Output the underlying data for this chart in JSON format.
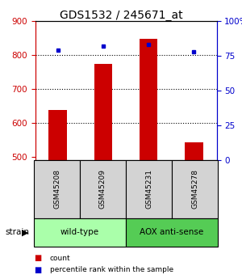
{
  "title": "GDS1532 / 245671_at",
  "samples": [
    "GSM45208",
    "GSM45209",
    "GSM45231",
    "GSM45278"
  ],
  "counts": [
    638,
    773,
    847,
    543
  ],
  "percentiles": [
    79,
    82,
    83,
    78
  ],
  "ylim_left": [
    490,
    900
  ],
  "ylim_right": [
    0,
    100
  ],
  "yticks_left": [
    500,
    600,
    700,
    800,
    900
  ],
  "yticks_right": [
    0,
    25,
    50,
    75,
    100
  ],
  "ytick_labels_right": [
    "0",
    "25",
    "50",
    "75",
    "100%"
  ],
  "bar_color": "#cc0000",
  "dot_color": "#0000cc",
  "groups": [
    {
      "label": "wild-type",
      "size": 2,
      "color": "#aaffaa"
    },
    {
      "label": "AOX anti-sense",
      "size": 2,
      "color": "#55cc55"
    }
  ],
  "strain_label": "strain",
  "legend_items": [
    {
      "color": "#cc0000",
      "label": "count"
    },
    {
      "color": "#0000cc",
      "label": "percentile rank within the sample"
    }
  ],
  "left_tick_color": "#cc0000",
  "right_tick_color": "#0000cc",
  "background_color": "#ffffff"
}
